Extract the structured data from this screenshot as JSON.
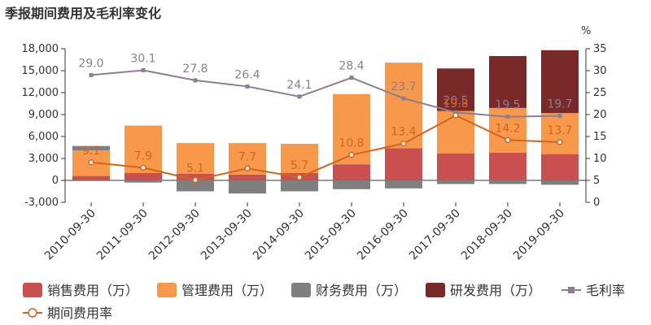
{
  "chart_data": {
    "type": "bar",
    "title": "季报期间费用及毛利率变化",
    "categories": [
      "2010-09-30",
      "2011-09-30",
      "2012-09-30",
      "2013-09-30",
      "2014-09-30",
      "2015-09-30",
      "2016-09-30",
      "2017-09-30",
      "2018-09-30",
      "2019-09-30"
    ],
    "left_axis": {
      "ylim": [
        -3000,
        18000
      ],
      "ticks": [
        "18,000",
        "15,000",
        "12,000",
        "9,000",
        "6,000",
        "3,000",
        "0",
        "-3,000"
      ],
      "tick_values": [
        18000,
        15000,
        12000,
        9000,
        6000,
        3000,
        0,
        -3000
      ]
    },
    "right_axis": {
      "unit": "%",
      "ylim": [
        0,
        35
      ],
      "ticks": [
        "35",
        "30",
        "25",
        "20",
        "15",
        "10",
        "5",
        "0"
      ],
      "tick_values": [
        35,
        30,
        25,
        20,
        15,
        10,
        5,
        0
      ]
    },
    "series": [
      {
        "name": "销售费用（万）",
        "kind": "bar",
        "color": "#c9504f",
        "values": [
          600,
          1000,
          900,
          800,
          1000,
          2200,
          4400,
          3700,
          3800,
          3600
        ]
      },
      {
        "name": "管理费用（万）",
        "kind": "bar",
        "color": "#f7984b",
        "values": [
          3500,
          6500,
          4200,
          4300,
          4000,
          9600,
          11700,
          5800,
          6100,
          5600
        ]
      },
      {
        "name": "财务费用（万）",
        "kind": "bar",
        "color": "#7f7f7f",
        "values": [
          600,
          -300,
          -1500,
          -1800,
          -1500,
          -1200,
          -1100,
          -500,
          -500,
          -600
        ]
      },
      {
        "name": "研发费用（万）",
        "kind": "bar",
        "color": "#7a2929",
        "values": [
          0,
          0,
          0,
          0,
          0,
          0,
          0,
          5800,
          7100,
          8600
        ]
      },
      {
        "name": "毛利率",
        "kind": "line",
        "axis": "right",
        "color": "#8c7e92",
        "values": [
          29.0,
          30.1,
          27.8,
          26.4,
          24.1,
          28.4,
          23.7,
          20.5,
          19.5,
          19.7
        ],
        "labels": [
          "29.0",
          "30.1",
          "27.8",
          "26.4",
          "24.1",
          "28.4",
          "23.7",
          "20.5",
          "19.5",
          "19.7"
        ]
      },
      {
        "name": "期间费用率",
        "kind": "line",
        "axis": "right",
        "color": "#d0661f",
        "values": [
          9.1,
          7.9,
          5.1,
          7.7,
          5.7,
          10.8,
          13.4,
          19.8,
          14.2,
          13.7
        ],
        "labels": [
          "9.1",
          "7.9",
          "5.1",
          "7.7",
          "5.7",
          "10.8",
          "13.4",
          "19.8",
          "14.2",
          "13.7"
        ]
      }
    ],
    "legend_position": "bottom"
  }
}
